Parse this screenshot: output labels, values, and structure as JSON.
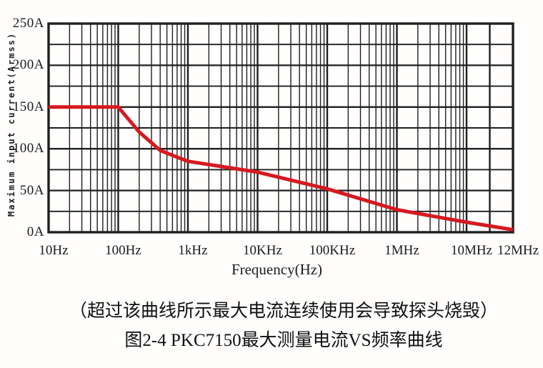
{
  "colors": {
    "curve": "#d6191f",
    "grid": "#1f1f1f",
    "text": "#1a1a1a",
    "background": "#ffffff"
  },
  "figure": {
    "caption_warning": "（超过该曲线所示最大电流连续使用会导致探头烧毁）",
    "caption_title": "图2-4 PKC7150最大测量电流VS频率曲线"
  },
  "chart_data": {
    "type": "line",
    "title": "",
    "xlabel": "Frequency(Hz)",
    "ylabel": "Maximum input current(Armss)",
    "x_scale": "log",
    "x_range": [
      10,
      12000000
    ],
    "x_log_end": 10000000,
    "x_linear_extension": [
      10000000,
      12000000
    ],
    "ylim": [
      0,
      250
    ],
    "y_grid_step": 25,
    "grid": true,
    "legend": false,
    "x_ticks": [
      {
        "label": "10Hz",
        "f": 10
      },
      {
        "label": "100Hz",
        "f": 100
      },
      {
        "label": "1kHz",
        "f": 1000
      },
      {
        "label": "10KHz",
        "f": 10000
      },
      {
        "label": "100KHz",
        "f": 100000
      },
      {
        "label": "1MHz",
        "f": 1000000
      },
      {
        "label": "10MHz",
        "f": 10000000
      },
      {
        "label": "12MHz",
        "f": 12000000
      }
    ],
    "y_ticks": [
      {
        "label": "250A",
        "v": 250
      },
      {
        "label": "200A",
        "v": 200
      },
      {
        "label": "150A",
        "v": 150
      },
      {
        "label": "100A",
        "v": 100
      },
      {
        "label": "50A",
        "v": 50
      },
      {
        "label": "0A",
        "v": 0
      }
    ],
    "series": [
      {
        "name": "PKC7150 maximum measurement current vs frequency",
        "color": "#d6191f",
        "points": [
          [
            10,
            150
          ],
          [
            100,
            150
          ],
          [
            200,
            120
          ],
          [
            400,
            98
          ],
          [
            700,
            90
          ],
          [
            1000,
            85
          ],
          [
            10000,
            72
          ],
          [
            100000,
            52
          ],
          [
            1000000,
            27
          ],
          [
            10000000,
            12
          ],
          [
            12000000,
            3
          ]
        ]
      }
    ]
  }
}
